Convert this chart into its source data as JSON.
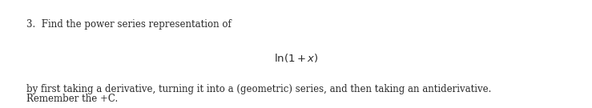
{
  "background_color": "#ffffff",
  "line1": "3.  Find the power series representation of",
  "line2_math": "$\\mathrm{ln}(1 + x)$",
  "line3": "by first taking a derivative, turning it into a (geometric) series, and then taking an antiderivative.",
  "line4": "Remember the +C.",
  "font_size_main": 8.5,
  "font_size_math": 9.5,
  "text_color": "#2a2a2a",
  "fig_width": 7.39,
  "fig_height": 1.35,
  "dpi": 100
}
